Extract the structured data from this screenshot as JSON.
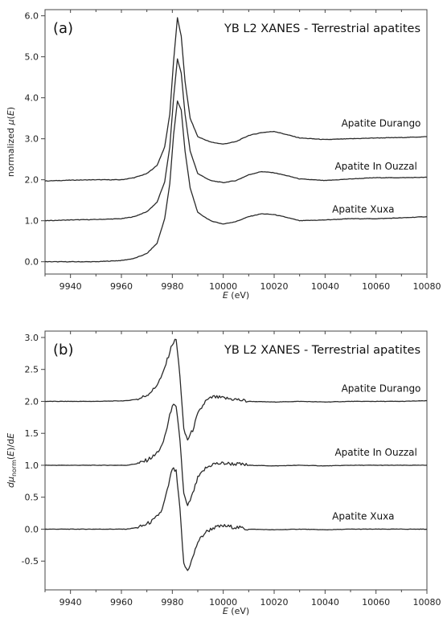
{
  "chart_data": [
    {
      "type": "line",
      "panel_tag": "(a)",
      "title": "YB L2 XANES - Terrestrial apatites",
      "xlabel": "E (eV)",
      "xlabel_italic": "E",
      "xlabel_unit": "(eV)",
      "ylabel": "normalized μ(E)",
      "ylabel_parts": [
        "normalized ",
        "μ",
        "(",
        "E",
        ")"
      ],
      "xlim": [
        9930,
        10080
      ],
      "ylim": [
        -0.3,
        6.15
      ],
      "xticks": [
        9940,
        9960,
        9980,
        10000,
        10020,
        10040,
        10060,
        10080
      ],
      "yticks": [
        0.0,
        1.0,
        2.0,
        3.0,
        4.0,
        5.0,
        6.0
      ],
      "ytick_labels": [
        "0.0",
        "1.0",
        "2.0",
        "3.0",
        "4.0",
        "5.0",
        "6.0"
      ],
      "series": [
        {
          "name": "Apatite Durango",
          "label_pos": [
            10062,
            3.38
          ],
          "points": [
            [
              9930,
              1.97
            ],
            [
              9940,
              1.99
            ],
            [
              9950,
              2.0
            ],
            [
              9960,
              2.0
            ],
            [
              9965,
              2.05
            ],
            [
              9970,
              2.15
            ],
            [
              9974,
              2.35
            ],
            [
              9977,
              2.8
            ],
            [
              9979,
              3.6
            ],
            [
              9980.5,
              4.9
            ],
            [
              9982,
              5.95
            ],
            [
              9983.5,
              5.5
            ],
            [
              9985,
              4.4
            ],
            [
              9987,
              3.5
            ],
            [
              9990,
              3.05
            ],
            [
              9995,
              2.92
            ],
            [
              10000,
              2.87
            ],
            [
              10005,
              2.93
            ],
            [
              10010,
              3.08
            ],
            [
              10015,
              3.15
            ],
            [
              10020,
              3.18
            ],
            [
              10025,
              3.1
            ],
            [
              10030,
              3.02
            ],
            [
              10040,
              2.98
            ],
            [
              10050,
              3.0
            ],
            [
              10060,
              3.02
            ],
            [
              10070,
              3.03
            ],
            [
              10080,
              3.05
            ]
          ]
        },
        {
          "name": "Apatite In Ouzzal",
          "label_pos": [
            10060,
            2.33
          ],
          "points": [
            [
              9930,
              1.0
            ],
            [
              9940,
              1.02
            ],
            [
              9950,
              1.03
            ],
            [
              9960,
              1.05
            ],
            [
              9965,
              1.1
            ],
            [
              9970,
              1.22
            ],
            [
              9974,
              1.45
            ],
            [
              9977,
              1.95
            ],
            [
              9979,
              2.8
            ],
            [
              9980.5,
              4.0
            ],
            [
              9982,
              4.95
            ],
            [
              9983.5,
              4.6
            ],
            [
              9985,
              3.6
            ],
            [
              9987,
              2.7
            ],
            [
              9990,
              2.15
            ],
            [
              9995,
              1.98
            ],
            [
              10000,
              1.93
            ],
            [
              10005,
              1.98
            ],
            [
              10010,
              2.12
            ],
            [
              10015,
              2.2
            ],
            [
              10020,
              2.17
            ],
            [
              10025,
              2.1
            ],
            [
              10030,
              2.02
            ],
            [
              10040,
              1.98
            ],
            [
              10050,
              2.02
            ],
            [
              10060,
              2.05
            ],
            [
              10070,
              2.05
            ],
            [
              10080,
              2.06
            ]
          ]
        },
        {
          "name": "Apatite Xuxa",
          "label_pos": [
            10055,
            1.28
          ],
          "points": [
            [
              9930,
              0.0
            ],
            [
              9940,
              0.0
            ],
            [
              9950,
              0.0
            ],
            [
              9960,
              0.03
            ],
            [
              9965,
              0.08
            ],
            [
              9970,
              0.2
            ],
            [
              9974,
              0.45
            ],
            [
              9977,
              1.05
            ],
            [
              9979,
              1.9
            ],
            [
              9980.5,
              3.1
            ],
            [
              9982,
              3.92
            ],
            [
              9983.5,
              3.7
            ],
            [
              9985,
              2.7
            ],
            [
              9987,
              1.8
            ],
            [
              9990,
              1.2
            ],
            [
              9995,
              1.0
            ],
            [
              10000,
              0.92
            ],
            [
              10005,
              0.98
            ],
            [
              10010,
              1.1
            ],
            [
              10015,
              1.17
            ],
            [
              10020,
              1.15
            ],
            [
              10025,
              1.08
            ],
            [
              10030,
              1.0
            ],
            [
              10040,
              1.02
            ],
            [
              10050,
              1.05
            ],
            [
              10060,
              1.05
            ],
            [
              10070,
              1.07
            ],
            [
              10080,
              1.1
            ]
          ]
        }
      ]
    },
    {
      "type": "line",
      "panel_tag": "(b)",
      "title": "YB L2 XANES - Terrestrial apatites",
      "xlabel": "E (eV)",
      "xlabel_italic": "E",
      "xlabel_unit": "(eV)",
      "ylabel": "dμnorm(E)/dE",
      "ylabel_parts": [
        "d",
        "μ",
        "norm",
        "(",
        "E",
        ")/d",
        "E"
      ],
      "xlim": [
        9930,
        10080
      ],
      "ylim": [
        -0.95,
        3.1
      ],
      "xticks": [
        9940,
        9960,
        9980,
        10000,
        10020,
        10040,
        10060,
        10080
      ],
      "yticks": [
        -0.5,
        0.0,
        0.5,
        1.0,
        1.5,
        2.0,
        2.5,
        3.0
      ],
      "ytick_labels": [
        "-0.5",
        "0.0",
        "0.5",
        "1.0",
        "1.5",
        "2.0",
        "2.5",
        "3.0"
      ],
      "series": [
        {
          "name": "Apatite Durango",
          "label_pos": [
            10062,
            2.2
          ],
          "points": [
            [
              9930,
              2.0
            ],
            [
              9950,
              2.0
            ],
            [
              9962,
              2.01
            ],
            [
              9967,
              2.04
            ],
            [
              9970,
              2.1
            ],
            [
              9973,
              2.2
            ],
            [
              9976,
              2.4
            ],
            [
              9978,
              2.65
            ],
            [
              9980,
              2.9
            ],
            [
              9981.5,
              2.97
            ],
            [
              9983,
              2.4
            ],
            [
              9984.5,
              1.55
            ],
            [
              9986,
              1.4
            ],
            [
              9988,
              1.55
            ],
            [
              9990,
              1.8
            ],
            [
              9993,
              2.0
            ],
            [
              9996,
              2.07
            ],
            [
              10000,
              2.05
            ],
            [
              10005,
              2.03
            ],
            [
              10010,
              2.0
            ],
            [
              10020,
              1.99
            ],
            [
              10030,
              2.0
            ],
            [
              10040,
              1.99
            ],
            [
              10050,
              2.0
            ],
            [
              10060,
              2.0
            ],
            [
              10070,
              2.0
            ],
            [
              10080,
              2.01
            ]
          ]
        },
        {
          "name": "Apatite In Ouzzal",
          "label_pos": [
            10060,
            1.2
          ],
          "points": [
            [
              9930,
              1.0
            ],
            [
              9950,
              1.0
            ],
            [
              9962,
              1.0
            ],
            [
              9967,
              1.03
            ],
            [
              9970,
              1.08
            ],
            [
              9973,
              1.15
            ],
            [
              9976,
              1.3
            ],
            [
              9978,
              1.6
            ],
            [
              9980,
              1.95
            ],
            [
              9981.5,
              1.9
            ],
            [
              9983,
              1.4
            ],
            [
              9984.5,
              0.55
            ],
            [
              9986,
              0.35
            ],
            [
              9988,
              0.55
            ],
            [
              9990,
              0.8
            ],
            [
              9993,
              0.95
            ],
            [
              9996,
              1.02
            ],
            [
              10000,
              1.03
            ],
            [
              10005,
              1.02
            ],
            [
              10010,
              1.0
            ],
            [
              10020,
              0.99
            ],
            [
              10030,
              1.0
            ],
            [
              10040,
              0.99
            ],
            [
              10050,
              1.0
            ],
            [
              10060,
              1.0
            ],
            [
              10070,
              1.0
            ],
            [
              10080,
              1.0
            ]
          ]
        },
        {
          "name": "Apatite Xuxa",
          "label_pos": [
            10055,
            0.2
          ],
          "points": [
            [
              9930,
              0.0
            ],
            [
              9950,
              0.0
            ],
            [
              9962,
              0.0
            ],
            [
              9967,
              0.03
            ],
            [
              9970,
              0.08
            ],
            [
              9973,
              0.15
            ],
            [
              9976,
              0.3
            ],
            [
              9978,
              0.6
            ],
            [
              9980,
              0.95
            ],
            [
              9981.5,
              0.9
            ],
            [
              9983,
              0.3
            ],
            [
              9984.5,
              -0.55
            ],
            [
              9986,
              -0.65
            ],
            [
              9988,
              -0.45
            ],
            [
              9990,
              -0.2
            ],
            [
              9993,
              -0.05
            ],
            [
              9996,
              0.02
            ],
            [
              10000,
              0.05
            ],
            [
              10005,
              0.03
            ],
            [
              10010,
              0.0
            ],
            [
              10020,
              -0.01
            ],
            [
              10030,
              0.0
            ],
            [
              10040,
              -0.01
            ],
            [
              10050,
              0.0
            ],
            [
              10060,
              0.0
            ],
            [
              10070,
              0.0
            ],
            [
              10080,
              0.0
            ]
          ]
        }
      ]
    }
  ]
}
